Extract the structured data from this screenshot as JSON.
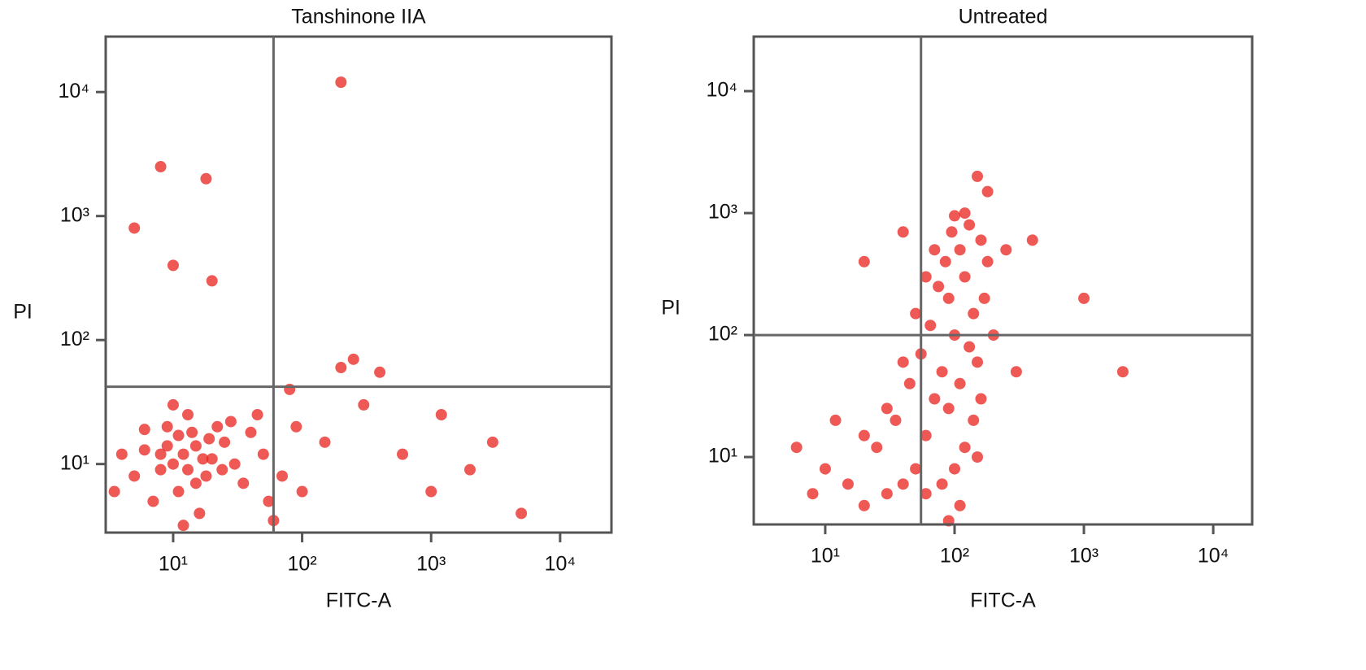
{
  "chart_data": [
    {
      "type": "scatter",
      "title": "Tanshinone IIA",
      "x_label": "FITC-A",
      "y_label": "PI",
      "log_x": true,
      "log_y": true,
      "xlim": [
        3,
        25000
      ],
      "ylim": [
        2.8,
        28000
      ],
      "xticks": [
        {
          "value": 10,
          "label": "10¹"
        },
        {
          "value": 100,
          "label": "10²"
        },
        {
          "value": 1000,
          "label": "10³"
        },
        {
          "value": 10000,
          "label": "10⁴"
        }
      ],
      "yticks": [
        {
          "value": 10,
          "label": "10¹"
        },
        {
          "value": 100,
          "label": "10²"
        },
        {
          "value": 1000,
          "label": "10³"
        },
        {
          "value": 10000,
          "label": "10⁴"
        }
      ],
      "quadrant": {
        "x": 60,
        "y": 42
      },
      "series": [
        {
          "color": "#e8211c",
          "x": [
            12,
            10,
            15,
            8,
            20,
            14,
            6,
            11,
            18,
            9,
            25,
            5,
            13,
            30,
            7,
            16,
            22,
            4,
            10,
            35,
            12,
            40,
            50,
            3.5,
            17,
            9,
            13,
            19,
            11,
            8,
            24,
            28,
            6,
            15,
            45,
            55,
            70,
            90,
            150,
            300,
            600,
            1200,
            2000,
            80,
            200,
            20,
            18,
            8,
            5,
            10,
            200,
            250,
            400,
            1000,
            3000,
            5000,
            60,
            100
          ],
          "values": [
            12,
            10,
            14,
            9,
            11,
            18,
            13,
            6,
            8,
            20,
            15,
            8,
            25,
            10,
            5,
            4,
            20,
            12,
            30,
            7,
            3.2,
            18,
            12,
            6,
            11,
            14,
            9,
            16,
            17,
            12,
            9,
            22,
            19,
            7,
            25,
            5,
            8,
            20,
            15,
            30,
            12,
            25,
            9,
            40,
            60,
            300,
            2000,
            2500,
            800,
            400,
            12000,
            70,
            55,
            6,
            15,
            4,
            3.5,
            6
          ]
        }
      ]
    },
    {
      "type": "scatter",
      "title": "Untreated",
      "x_label": "FITC-A",
      "y_label": "PI",
      "log_x": true,
      "log_y": true,
      "xlim": [
        2.8,
        20000
      ],
      "ylim": [
        2.8,
        28000
      ],
      "xticks": [
        {
          "value": 10,
          "label": "10¹"
        },
        {
          "value": 100,
          "label": "10²"
        },
        {
          "value": 1000,
          "label": "10³"
        },
        {
          "value": 10000,
          "label": "10⁴"
        }
      ],
      "yticks": [
        {
          "value": 10,
          "label": "10¹"
        },
        {
          "value": 100,
          "label": "10²"
        },
        {
          "value": 1000,
          "label": "10³"
        },
        {
          "value": 10000,
          "label": "10⁴"
        }
      ],
      "quadrant": {
        "x": 55,
        "y": 100
      },
      "series": [
        {
          "color": "#e8211c",
          "x": [
            100,
            90,
            120,
            80,
            110,
            130,
            100,
            70,
            60,
            50,
            40,
            30,
            20,
            15,
            10,
            25,
            35,
            45,
            55,
            65,
            75,
            85,
            95,
            140,
            150,
            160,
            140,
            120,
            100,
            80,
            60,
            90,
            110,
            130,
            170,
            180,
            160,
            120,
            70,
            60,
            50,
            40,
            30,
            20,
            12,
            8,
            6,
            200,
            150,
            110,
            90,
            300,
            250,
            400,
            180,
            1000,
            2000,
            20,
            40,
            150
          ],
          "values": [
            100,
            200,
            300,
            50,
            500,
            800,
            950,
            30,
            15,
            8,
            6,
            5,
            4,
            6,
            8,
            12,
            20,
            40,
            70,
            120,
            250,
            400,
            700,
            150,
            60,
            30,
            20,
            12,
            8,
            6,
            5,
            25,
            40,
            80,
            200,
            400,
            600,
            1000,
            500,
            300,
            150,
            60,
            25,
            15,
            20,
            5,
            12,
            100,
            10,
            4,
            3,
            50,
            500,
            600,
            1500,
            200,
            50,
            400,
            700,
            2000
          ]
        }
      ]
    }
  ]
}
